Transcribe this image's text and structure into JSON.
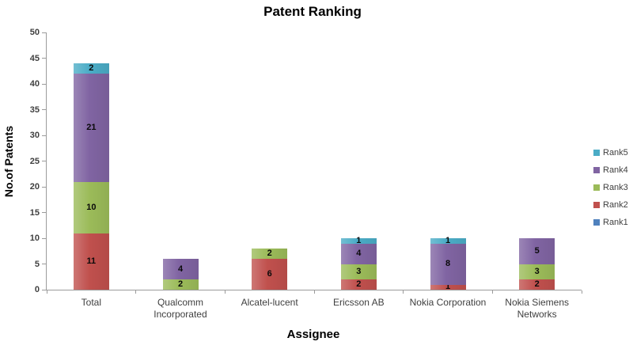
{
  "chart_data": {
    "type": "bar",
    "stacked": true,
    "title": "Patent Ranking",
    "xlabel": "Assignee",
    "ylabel": "No.of Patents",
    "ylim": [
      0,
      50
    ],
    "yticks": [
      0,
      5,
      10,
      15,
      20,
      25,
      30,
      35,
      40,
      45,
      50
    ],
    "grid": false,
    "data_labels": true,
    "legend_position": "right",
    "legend_order": [
      "Rank5",
      "Rank4",
      "Rank3",
      "Rank2",
      "Rank1"
    ],
    "categories": [
      "Total",
      "Qualcomm Incorporated",
      "Alcatel-lucent",
      "Ericsson AB",
      "Nokia Corporation",
      "Nokia Siemens Networks"
    ],
    "series": [
      {
        "name": "Rank1",
        "color": "#4F81BD",
        "values": [
          0,
          0,
          0,
          0,
          0,
          0
        ]
      },
      {
        "name": "Rank2",
        "color": "#C0504D",
        "values": [
          11,
          0,
          6,
          2,
          1,
          2
        ]
      },
      {
        "name": "Rank3",
        "color": "#9BBB59",
        "values": [
          10,
          2,
          2,
          3,
          0,
          3
        ]
      },
      {
        "name": "Rank4",
        "color": "#8064A2",
        "values": [
          21,
          4,
          0,
          4,
          8,
          5
        ]
      },
      {
        "name": "Rank5",
        "color": "#4BACC6",
        "values": [
          2,
          0,
          0,
          1,
          1,
          0
        ]
      }
    ]
  }
}
